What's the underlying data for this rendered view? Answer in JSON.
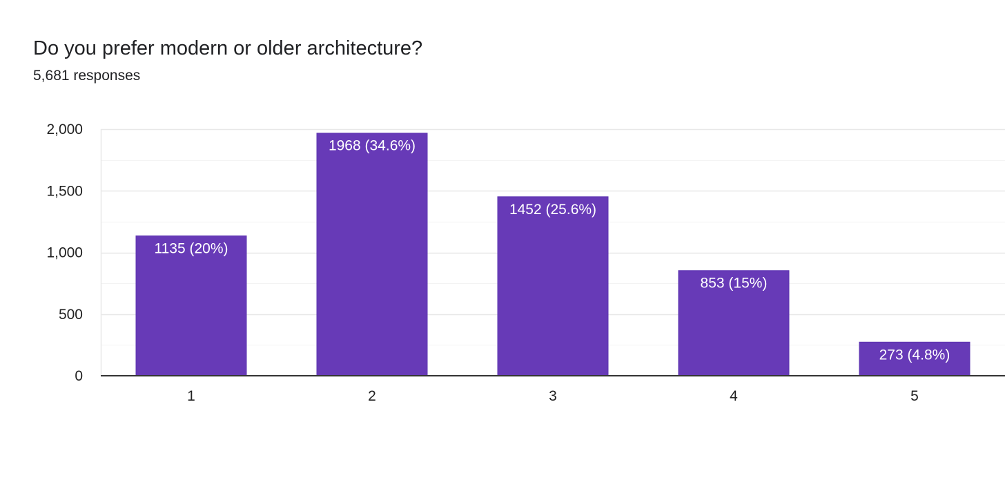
{
  "question": {
    "title": "Do you prefer modern or older architecture?",
    "responses": "5,681 responses"
  },
  "colors": {
    "bar": "#673ab7",
    "bar_border": "#5e35b1",
    "grid_major": "#e8e8e8",
    "grid_minor": "#f3f3f3",
    "axis": "#333333",
    "bar_text": "#ffffff"
  },
  "chart_data": {
    "type": "bar",
    "categories": [
      "1",
      "2",
      "3",
      "4",
      "5"
    ],
    "values": [
      1135,
      1968,
      1452,
      853,
      273
    ],
    "data_labels": [
      "1135 (20%)",
      "1968 (34.6%)",
      "1452 (25.6%)",
      "853 (15%)",
      "273 (4.8%)"
    ],
    "y_ticks": [
      0,
      500,
      1000,
      1500,
      2000
    ],
    "y_tick_labels": [
      "0",
      "500",
      "1,000",
      "1,500",
      "2,000"
    ],
    "ylim": [
      0,
      2000
    ],
    "grid": true,
    "legend": "none"
  }
}
